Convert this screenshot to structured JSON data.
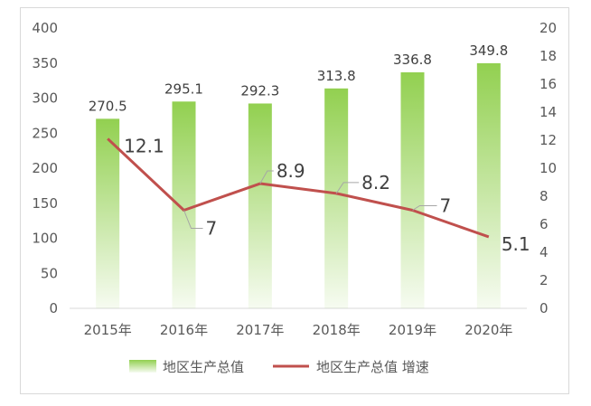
{
  "chart_data": {
    "type": "bar",
    "categories": [
      "2015年",
      "2016年",
      "2017年",
      "2018年",
      "2019年",
      "2020年"
    ],
    "series": [
      {
        "name": "地区生产总值",
        "type": "bar",
        "axis": "left",
        "color": "#92d050",
        "values": [
          270.5,
          295.1,
          292.3,
          313.8,
          336.8,
          349.8
        ]
      },
      {
        "name": "地区生产总值 增速",
        "type": "line",
        "axis": "right",
        "color": "#c0504d",
        "values": [
          12.1,
          7,
          8.9,
          8.2,
          7,
          5.1
        ]
      }
    ],
    "ylim_left": [
      0,
      400
    ],
    "yticks_left": [
      0,
      50,
      100,
      150,
      200,
      250,
      300,
      350,
      400
    ],
    "ylim_right": [
      0,
      20
    ],
    "yticks_right": [
      0,
      2,
      4,
      6,
      8,
      10,
      12,
      14,
      16,
      18,
      20
    ],
    "grid": false,
    "legend_position": "bottom",
    "title": "",
    "xlabel": "",
    "ylabel": ""
  }
}
